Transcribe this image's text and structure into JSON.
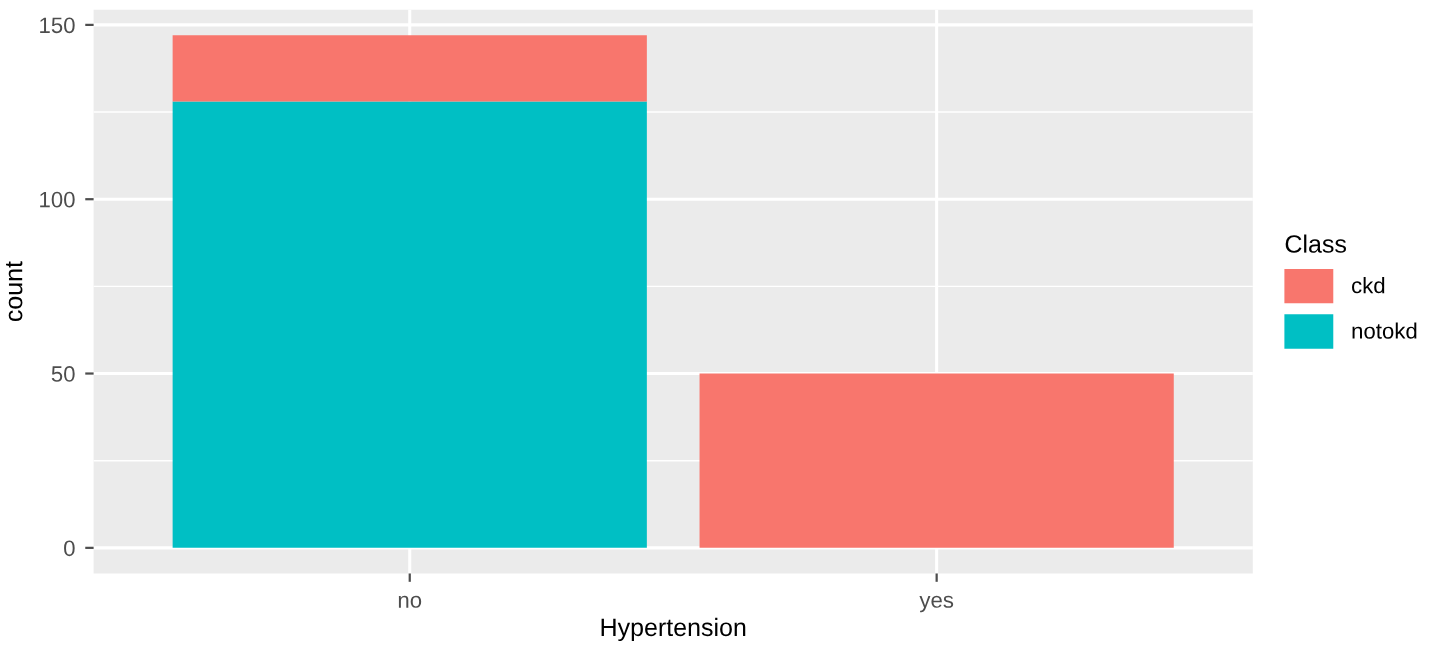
{
  "chart_data": {
    "type": "bar",
    "stacked": true,
    "xlabel": "Hypertension",
    "ylabel": "count",
    "legend_title": "Class",
    "categories": [
      "no",
      "yes"
    ],
    "series": [
      {
        "name": "notokd",
        "color": "#00bfc4",
        "values": [
          128,
          0
        ]
      },
      {
        "name": "ckd",
        "color": "#f8766d",
        "values": [
          19,
          50
        ]
      }
    ],
    "ylim": [
      -7.35,
      154.35
    ],
    "yticks": [
      0,
      50,
      100,
      150
    ],
    "grid": true,
    "legend": "right"
  }
}
